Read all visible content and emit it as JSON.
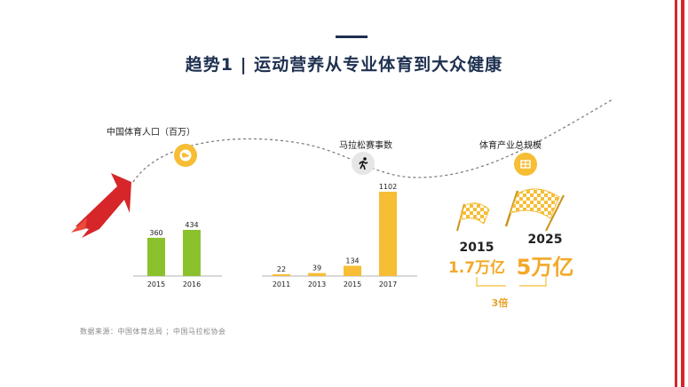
{
  "title": "趋势1 | 运动营养从专业体育到大众健康",
  "source": "数据来源：中国体育总局 ；中国马拉松协会",
  "colors": {
    "green": "#8cc12e",
    "yellow": "#f6bd35",
    "red": "#d6262a",
    "navy": "#1e3050"
  },
  "chart_data": [
    {
      "type": "bar",
      "title": "中国体育人口（百万）",
      "categories": [
        "2015",
        "2016"
      ],
      "values": [
        360,
        434
      ],
      "icon": "globe-icon",
      "ylim": [
        0,
        434
      ]
    },
    {
      "type": "bar",
      "title": "马拉松赛事数",
      "categories": [
        "2011",
        "2013",
        "2015",
        "2017"
      ],
      "values": [
        22,
        39,
        134,
        1102
      ],
      "icon": "runner-icon",
      "ylim": [
        0,
        1102
      ]
    },
    {
      "type": "table",
      "title": "体育产业总规模",
      "icon": "industry-icon",
      "rows": [
        {
          "year": "2015",
          "amount": "1.7万亿"
        },
        {
          "year": "2025",
          "amount": "5万亿"
        }
      ],
      "multiplier": "3倍"
    }
  ]
}
